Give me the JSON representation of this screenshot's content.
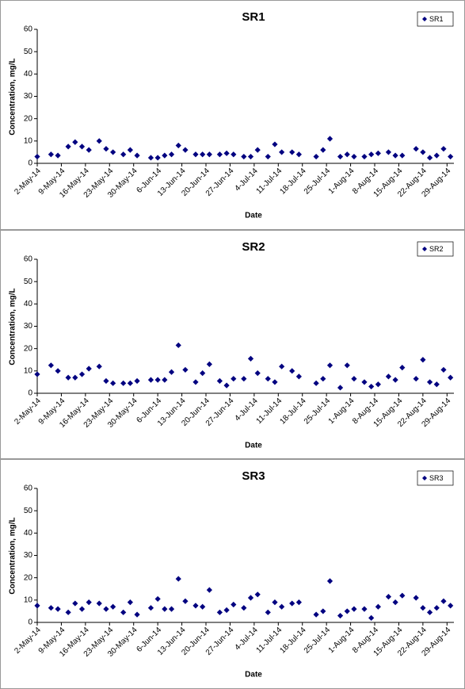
{
  "chart_data": [
    {
      "type": "scatter",
      "title": "SR1",
      "x_label": "Date",
      "y_label": "Concentration, mg/L",
      "legend": "upper right",
      "grid": false,
      "xlim": [
        "2014-05-02",
        "2014-08-31"
      ],
      "ylim": [
        0,
        60
      ],
      "yticks": [
        0,
        10,
        20,
        30,
        40,
        50,
        60
      ],
      "xticks": [
        {
          "value": "2014-05-02",
          "label": "2-May-14"
        },
        {
          "value": "2014-05-09",
          "label": "9-May-14"
        },
        {
          "value": "2014-05-16",
          "label": "16-May-14"
        },
        {
          "value": "2014-05-23",
          "label": "23-May-14"
        },
        {
          "value": "2014-05-30",
          "label": "30-May-14"
        },
        {
          "value": "2014-06-06",
          "label": "6-Jun-14"
        },
        {
          "value": "2014-06-13",
          "label": "13-Jun-14"
        },
        {
          "value": "2014-06-20",
          "label": "20-Jun-14"
        },
        {
          "value": "2014-06-27",
          "label": "27-Jun-14"
        },
        {
          "value": "2014-07-04",
          "label": "4-Jul-14"
        },
        {
          "value": "2014-07-11",
          "label": "11-Jul-14"
        },
        {
          "value": "2014-07-18",
          "label": "18-Jul-14"
        },
        {
          "value": "2014-07-25",
          "label": "25-Jul-14"
        },
        {
          "value": "2014-08-01",
          "label": "1-Aug-14"
        },
        {
          "value": "2014-08-08",
          "label": "8-Aug-14"
        },
        {
          "value": "2014-08-15",
          "label": "15-Aug-14"
        },
        {
          "value": "2014-08-22",
          "label": "22-Aug-14"
        },
        {
          "value": "2014-08-29",
          "label": "29-Aug-14"
        }
      ],
      "x": [
        "2014-05-02",
        "2014-05-06",
        "2014-05-08",
        "2014-05-11",
        "2014-05-13",
        "2014-05-15",
        "2014-05-17",
        "2014-05-20",
        "2014-05-22",
        "2014-05-24",
        "2014-05-27",
        "2014-05-29",
        "2014-05-31",
        "2014-06-04",
        "2014-06-06",
        "2014-06-08",
        "2014-06-10",
        "2014-06-12",
        "2014-06-14",
        "2014-06-17",
        "2014-06-19",
        "2014-06-21",
        "2014-06-24",
        "2014-06-26",
        "2014-06-28",
        "2014-07-01",
        "2014-07-03",
        "2014-07-05",
        "2014-07-08",
        "2014-07-10",
        "2014-07-12",
        "2014-07-15",
        "2014-07-17",
        "2014-07-22",
        "2014-07-24",
        "2014-07-26",
        "2014-07-29",
        "2014-07-31",
        "2014-08-02",
        "2014-08-05",
        "2014-08-07",
        "2014-08-09",
        "2014-08-12",
        "2014-08-14",
        "2014-08-16",
        "2014-08-20",
        "2014-08-22",
        "2014-08-24",
        "2014-08-26",
        "2014-08-28",
        "2014-08-30"
      ],
      "series": [
        {
          "name": "SR1",
          "color": "#000080",
          "values": [
            3,
            4,
            3.5,
            7.5,
            9.5,
            7.5,
            6,
            10,
            6.5,
            5,
            4,
            6,
            3.5,
            2.5,
            2.5,
            3.5,
            4,
            8,
            6,
            4,
            4,
            4,
            4,
            4.5,
            4,
            3,
            3,
            6,
            3,
            8.5,
            5,
            5,
            4,
            3,
            6,
            11,
            3,
            4,
            3,
            3,
            4,
            4.5,
            5,
            3.5,
            3.5,
            6.5,
            5,
            2.5,
            3.5,
            6.5,
            3
          ]
        }
      ]
    },
    {
      "type": "scatter",
      "title": "SR2",
      "x_label": "Date",
      "y_label": "Concentration, mg/L",
      "legend": "upper right",
      "grid": false,
      "xlim": [
        "2014-05-02",
        "2014-08-31"
      ],
      "ylim": [
        0,
        60
      ],
      "yticks": [
        0,
        10,
        20,
        30,
        40,
        50,
        60
      ],
      "xticks": [
        {
          "value": "2014-05-02",
          "label": "2-May-14"
        },
        {
          "value": "2014-05-09",
          "label": "9-May-14"
        },
        {
          "value": "2014-05-16",
          "label": "16-May-14"
        },
        {
          "value": "2014-05-23",
          "label": "23-May-14"
        },
        {
          "value": "2014-05-30",
          "label": "30-May-14"
        },
        {
          "value": "2014-06-06",
          "label": "6-Jun-14"
        },
        {
          "value": "2014-06-13",
          "label": "13-Jun-14"
        },
        {
          "value": "2014-06-20",
          "label": "20-Jun-14"
        },
        {
          "value": "2014-06-27",
          "label": "27-Jun-14"
        },
        {
          "value": "2014-07-04",
          "label": "4-Jul-14"
        },
        {
          "value": "2014-07-11",
          "label": "11-Jul-14"
        },
        {
          "value": "2014-07-18",
          "label": "18-Jul-14"
        },
        {
          "value": "2014-07-25",
          "label": "25-Jul-14"
        },
        {
          "value": "2014-08-01",
          "label": "1-Aug-14"
        },
        {
          "value": "2014-08-08",
          "label": "8-Aug-14"
        },
        {
          "value": "2014-08-15",
          "label": "15-Aug-14"
        },
        {
          "value": "2014-08-22",
          "label": "22-Aug-14"
        },
        {
          "value": "2014-08-29",
          "label": "29-Aug-14"
        }
      ],
      "x": [
        "2014-05-02",
        "2014-05-06",
        "2014-05-08",
        "2014-05-11",
        "2014-05-13",
        "2014-05-15",
        "2014-05-17",
        "2014-05-20",
        "2014-05-22",
        "2014-05-24",
        "2014-05-27",
        "2014-05-29",
        "2014-05-31",
        "2014-06-04",
        "2014-06-06",
        "2014-06-08",
        "2014-06-10",
        "2014-06-12",
        "2014-06-14",
        "2014-06-17",
        "2014-06-19",
        "2014-06-21",
        "2014-06-24",
        "2014-06-26",
        "2014-06-28",
        "2014-07-01",
        "2014-07-03",
        "2014-07-05",
        "2014-07-08",
        "2014-07-10",
        "2014-07-12",
        "2014-07-15",
        "2014-07-17",
        "2014-07-22",
        "2014-07-24",
        "2014-07-26",
        "2014-07-29",
        "2014-07-31",
        "2014-08-02",
        "2014-08-05",
        "2014-08-07",
        "2014-08-09",
        "2014-08-12",
        "2014-08-14",
        "2014-08-16",
        "2014-08-20",
        "2014-08-22",
        "2014-08-24",
        "2014-08-26",
        "2014-08-28",
        "2014-08-30"
      ],
      "series": [
        {
          "name": "SR2",
          "color": "#000080",
          "values": [
            8.5,
            12.5,
            10,
            7,
            7,
            8.5,
            11,
            12,
            5.5,
            4.5,
            4.5,
            4.5,
            5.5,
            6,
            6,
            6,
            9.5,
            21.5,
            10.5,
            5,
            9,
            13,
            5.5,
            3.5,
            6.5,
            6.5,
            15.5,
            9,
            6.5,
            5,
            12,
            10,
            7.5,
            4.5,
            6.5,
            12.5,
            2.5,
            12.5,
            6.5,
            5,
            3,
            4,
            7.5,
            6,
            11.5,
            6.5,
            15,
            5,
            4,
            10.5,
            7
          ]
        }
      ]
    },
    {
      "type": "scatter",
      "title": "SR3",
      "x_label": "Date",
      "y_label": "Concentration, mg/L",
      "legend": "upper right",
      "grid": false,
      "xlim": [
        "2014-05-02",
        "2014-08-31"
      ],
      "ylim": [
        0,
        60
      ],
      "yticks": [
        0,
        10,
        20,
        30,
        40,
        50,
        60
      ],
      "xticks": [
        {
          "value": "2014-05-02",
          "label": "2-May-14"
        },
        {
          "value": "2014-05-09",
          "label": "9-May-14"
        },
        {
          "value": "2014-05-16",
          "label": "16-May-14"
        },
        {
          "value": "2014-05-23",
          "label": "23-May-14"
        },
        {
          "value": "2014-05-30",
          "label": "30-May-14"
        },
        {
          "value": "2014-06-06",
          "label": "6-Jun-14"
        },
        {
          "value": "2014-06-13",
          "label": "13-Jun-14"
        },
        {
          "value": "2014-06-20",
          "label": "20-Jun-14"
        },
        {
          "value": "2014-06-27",
          "label": "27-Jun-14"
        },
        {
          "value": "2014-07-04",
          "label": "4-Jul-14"
        },
        {
          "value": "2014-07-11",
          "label": "11-Jul-14"
        },
        {
          "value": "2014-07-18",
          "label": "18-Jul-14"
        },
        {
          "value": "2014-07-25",
          "label": "25-Jul-14"
        },
        {
          "value": "2014-08-01",
          "label": "1-Aug-14"
        },
        {
          "value": "2014-08-08",
          "label": "8-Aug-14"
        },
        {
          "value": "2014-08-15",
          "label": "15-Aug-14"
        },
        {
          "value": "2014-08-22",
          "label": "22-Aug-14"
        },
        {
          "value": "2014-08-29",
          "label": "29-Aug-14"
        }
      ],
      "x": [
        "2014-05-02",
        "2014-05-06",
        "2014-05-08",
        "2014-05-11",
        "2014-05-13",
        "2014-05-15",
        "2014-05-17",
        "2014-05-20",
        "2014-05-22",
        "2014-05-24",
        "2014-05-27",
        "2014-05-29",
        "2014-05-31",
        "2014-06-04",
        "2014-06-06",
        "2014-06-08",
        "2014-06-10",
        "2014-06-12",
        "2014-06-14",
        "2014-06-17",
        "2014-06-19",
        "2014-06-21",
        "2014-06-24",
        "2014-06-26",
        "2014-06-28",
        "2014-07-01",
        "2014-07-03",
        "2014-07-05",
        "2014-07-08",
        "2014-07-10",
        "2014-07-12",
        "2014-07-15",
        "2014-07-17",
        "2014-07-22",
        "2014-07-24",
        "2014-07-26",
        "2014-07-29",
        "2014-07-31",
        "2014-08-02",
        "2014-08-05",
        "2014-08-07",
        "2014-08-09",
        "2014-08-12",
        "2014-08-14",
        "2014-08-16",
        "2014-08-20",
        "2014-08-22",
        "2014-08-24",
        "2014-08-26",
        "2014-08-28",
        "2014-08-30"
      ],
      "series": [
        {
          "name": "SR3",
          "color": "#000080",
          "values": [
            7.5,
            6.5,
            6,
            4.5,
            8.5,
            6,
            9,
            8.5,
            6,
            7,
            4.5,
            9,
            3.5,
            6.5,
            10.5,
            6,
            6,
            19.5,
            9.5,
            7.5,
            7,
            14.5,
            4.5,
            5.5,
            8,
            6.5,
            11,
            12.5,
            4.5,
            9,
            7,
            8.5,
            9,
            3.5,
            5,
            18.5,
            3,
            5,
            6,
            6,
            2,
            7,
            11.5,
            9,
            12,
            11,
            6.5,
            4.5,
            6.5,
            9.5,
            7.5
          ]
        }
      ]
    }
  ]
}
